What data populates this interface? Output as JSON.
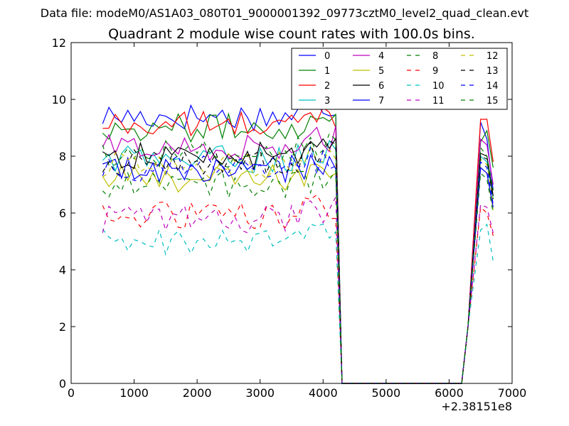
{
  "figure": {
    "suptitle": "Data file: modeM0/AS1A03_080T01_9000001392_09773cztM0_level2_quad_clean.evt",
    "offset_label": "+2.38151e8"
  },
  "chart_data": {
    "type": "line",
    "title": "Quadrant 2 module wise count rates with 100.0s bins.",
    "xlabel": "",
    "ylabel": "",
    "xlim": [
      0,
      7000
    ],
    "ylim": [
      0,
      12
    ],
    "x_offset": 238151000,
    "xticks": [
      "0",
      "1000",
      "2000",
      "3000",
      "4000",
      "5000",
      "6000",
      "7000"
    ],
    "yticks": [
      "0",
      "2",
      "4",
      "6",
      "8",
      "10",
      "12"
    ],
    "grid": false,
    "legend": {
      "placement": "upper-right",
      "columns": 4
    },
    "series": [
      {
        "name": "0",
        "color": "#0000ff",
        "dash": "solid",
        "base": 9.4,
        "tail": [
          9.2,
          8.6,
          6.8
        ]
      },
      {
        "name": "1",
        "color": "#008000",
        "dash": "solid",
        "base": 9.0,
        "tail": [
          8.5,
          8.9,
          7.6
        ]
      },
      {
        "name": "2",
        "color": "#ff0000",
        "dash": "solid",
        "base": 9.1,
        "tail": [
          9.3,
          9.3,
          7.8
        ]
      },
      {
        "name": "3",
        "color": "#00bfbf",
        "dash": "solid",
        "base": 7.9,
        "tail": [
          8.0,
          7.8,
          6.5
        ]
      },
      {
        "name": "4",
        "color": "#bf00bf",
        "dash": "solid",
        "base": 8.3,
        "tail": [
          8.6,
          8.4,
          7.0
        ]
      },
      {
        "name": "5",
        "color": "#bfbf00",
        "dash": "solid",
        "base": 7.2,
        "tail": [
          7.6,
          7.4,
          6.1
        ]
      },
      {
        "name": "6",
        "color": "#000000",
        "dash": "solid",
        "base": 8.0,
        "tail": [
          8.1,
          8.0,
          6.6
        ]
      },
      {
        "name": "7",
        "color": "#0000ff",
        "dash": "solid",
        "base": 7.5,
        "tail": [
          7.6,
          7.4,
          6.2
        ]
      },
      {
        "name": "8",
        "color": "#008000",
        "dash": "dashed",
        "base": 8.1,
        "tail": [
          8.3,
          8.0,
          6.8
        ]
      },
      {
        "name": "9",
        "color": "#ff0000",
        "dash": "dashed",
        "base": 5.9,
        "tail": [
          6.2,
          6.0,
          5.2
        ]
      },
      {
        "name": "10",
        "color": "#00bfbf",
        "dash": "dashed",
        "base": 5.0,
        "tail": [
          5.4,
          5.6,
          4.3
        ]
      },
      {
        "name": "11",
        "color": "#bf00bf",
        "dash": "dashed",
        "base": 5.8,
        "tail": [
          6.3,
          6.2,
          5.3
        ]
      },
      {
        "name": "12",
        "color": "#bfbf00",
        "dash": "dashed",
        "base": 7.7,
        "tail": [
          7.9,
          7.7,
          6.4
        ]
      },
      {
        "name": "13",
        "color": "#000000",
        "dash": "dashed",
        "base": 7.8,
        "tail": [
          8.0,
          7.9,
          6.5
        ]
      },
      {
        "name": "14",
        "color": "#0000ff",
        "dash": "dashed",
        "base": 7.6,
        "tail": [
          7.8,
          7.6,
          6.3
        ]
      },
      {
        "name": "15",
        "color": "#008000",
        "dash": "dashed",
        "base": 7.0,
        "tail": [
          7.4,
          7.2,
          6.0
        ]
      }
    ],
    "x_first_segment": [
      500,
      4200
    ],
    "x_step": 100,
    "x_drop": [
      4300,
      6200
    ],
    "x_tail": [
      6500,
      6600,
      6700
    ]
  }
}
